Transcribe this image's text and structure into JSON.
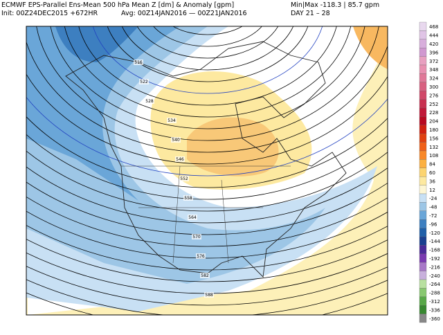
{
  "header": {
    "line1_left": "ECMWF EPS-Parallel Ens-Mean 500 hPa Mean Z [dm] & Anomaly [gpm]",
    "line1_right": "Min|Max -118.3 | 85.7 gpm",
    "line2_init": "Init: 00Z24DEC2015 +672HR",
    "line2_avg": "Avg: 00Z14JAN2016 — 00Z21JAN2016",
    "line2_day": "DAY 21 – 28"
  },
  "colorbar": {
    "labels": [
      468,
      444,
      420,
      396,
      372,
      348,
      324,
      300,
      276,
      252,
      228,
      204,
      180,
      156,
      132,
      108,
      84,
      60,
      36,
      12,
      -24,
      -48,
      -72,
      -96,
      -120,
      -144,
      -168,
      -192,
      -216,
      -240,
      -264,
      -288,
      -312,
      -336,
      -360
    ],
    "colors": [
      "#e8d8ee",
      "#e0c4e6",
      "#d8aedc",
      "#d098d0",
      "#e8a0c0",
      "#e890b0",
      "#e07898",
      "#d86080",
      "#d04868",
      "#c83050",
      "#c01838",
      "#b80820",
      "#d02010",
      "#e04010",
      "#f06018",
      "#f88828",
      "#fcb040",
      "#fcd470",
      "#fde9a0",
      "#fdf6d4",
      "#c8e0f4",
      "#9dc6e6",
      "#6aa6d8",
      "#3d7fc0",
      "#1f5fa8",
      "#1a3f90",
      "#4a2a98",
      "#7a3ab0",
      "#a878c8",
      "#c8b0dc",
      "#b8e0a0",
      "#88c870",
      "#58a848",
      "#388830",
      "#888888"
    ]
  },
  "map": {
    "contour_labels": [
      516,
      522,
      528,
      534,
      540,
      546,
      552,
      558,
      564,
      570,
      576,
      582,
      588
    ]
  }
}
